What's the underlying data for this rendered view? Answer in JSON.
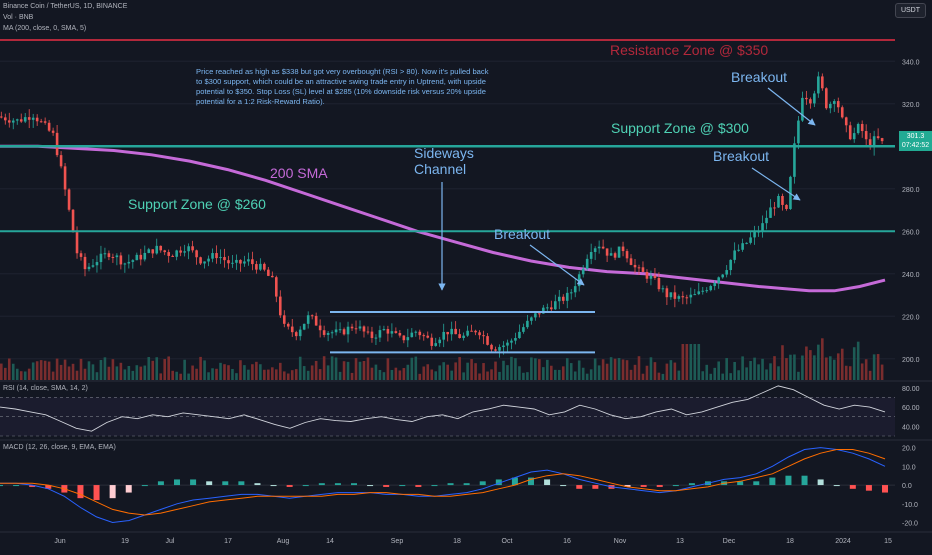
{
  "header": {
    "symbol_line": "Binance Coin / TetherUS, 1D, BINANCE",
    "vol_line": "Vol · BNB",
    "ma_line": "MA (200, close, 0, SMA, 5)",
    "currency_badge": "USDT"
  },
  "price_badge": {
    "price": "301.3",
    "countdown": "07:42:52"
  },
  "annotation": "Price reached as high as $338 but got very overbought (RSI > 80). Now it's pulled back to $300 support, which could be an attractive swing trade entry in Uptrend, with upside potential to $350. Stop Loss (SL) level at $285 (10% downside risk versus 20% upside potential for a 1:2 Risk-Reward Ratio).",
  "labels": {
    "resistance": "Resistance Zone @ $350",
    "support300": "Support Zone @ $300",
    "support260": "Support Zone @ $260",
    "sma200": "200 SMA",
    "sideways1": "Sideways",
    "sideways2": "Channel",
    "breakout": "Breakout"
  },
  "panes": {
    "rsi_title": "RSI (14, close, SMA, 14, 2)",
    "macd_title": "MACD (12, 26, close, 9, EMA, EMA)"
  },
  "colors": {
    "background": "#131722",
    "up": "#26a69a",
    "down": "#ef5350",
    "sma": "#c56ad8",
    "resistance": "#b2283b",
    "support": "#26a69a",
    "channel": "#7cb6f0",
    "text_blue": "#7cb6f0"
  },
  "chart_data": [
    {
      "type": "candlestick",
      "x_ticks": [
        "Jun",
        "19",
        "Jul",
        "17",
        "Aug",
        "14",
        "Sep",
        "18",
        "Oct",
        "16",
        "Nov",
        "13",
        "Dec",
        "18",
        "2024",
        "15"
      ],
      "y_ticks": [
        200,
        220,
        240,
        260,
        280,
        300,
        320,
        340
      ],
      "ylim": [
        190,
        350
      ],
      "levels": {
        "resistance": 350,
        "support_upper": 300,
        "support_lower": 260
      },
      "channel": {
        "top": 222,
        "bottom": 203
      },
      "sma200_path": [
        [
          0,
          300
        ],
        [
          30,
          300
        ],
        [
          60,
          299
        ],
        [
          90,
          298
        ],
        [
          120,
          296
        ],
        [
          150,
          293
        ],
        [
          180,
          289
        ],
        [
          210,
          284
        ],
        [
          240,
          278
        ],
        [
          270,
          272
        ],
        [
          300,
          266
        ],
        [
          330,
          260
        ],
        [
          360,
          255
        ],
        [
          390,
          250
        ],
        [
          420,
          246
        ],
        [
          450,
          243
        ],
        [
          480,
          241
        ],
        [
          510,
          240
        ],
        [
          540,
          238
        ],
        [
          570,
          236
        ],
        [
          600,
          234
        ],
        [
          620,
          233
        ],
        [
          640,
          232
        ],
        [
          660,
          232
        ],
        [
          680,
          234
        ],
        [
          700,
          237
        ]
      ],
      "price_path": [
        [
          0,
          314
        ],
        [
          20,
          312
        ],
        [
          35,
          315
        ],
        [
          45,
          310
        ],
        [
          55,
          305
        ],
        [
          62,
          290
        ],
        [
          70,
          270
        ],
        [
          78,
          250
        ],
        [
          86,
          242
        ],
        [
          96,
          246
        ],
        [
          110,
          250
        ],
        [
          125,
          245
        ],
        [
          140,
          248
        ],
        [
          155,
          252
        ],
        [
          170,
          249
        ],
        [
          185,
          253
        ],
        [
          200,
          246
        ],
        [
          215,
          249
        ],
        [
          230,
          244
        ],
        [
          245,
          246
        ],
        [
          260,
          242
        ],
        [
          270,
          236
        ],
        [
          280,
          215
        ],
        [
          292,
          212
        ],
        [
          305,
          220
        ],
        [
          320,
          213
        ],
        [
          335,
          212
        ],
        [
          350,
          216
        ],
        [
          365,
          210
        ],
        [
          380,
          214
        ],
        [
          395,
          209
        ],
        [
          410,
          213
        ],
        [
          425,
          208
        ],
        [
          440,
          213
        ],
        [
          455,
          210
        ],
        [
          470,
          214
        ],
        [
          485,
          205
        ],
        [
          500,
          207
        ],
        [
          515,
          215
        ],
        [
          530,
          222
        ],
        [
          545,
          226
        ],
        [
          560,
          230
        ],
        [
          570,
          240
        ],
        [
          580,
          252
        ],
        [
          590,
          254
        ],
        [
          600,
          248
        ],
        [
          612,
          252
        ],
        [
          625,
          242
        ],
        [
          640,
          238
        ],
        [
          655,
          230
        ],
        [
          670,
          228
        ],
        [
          685,
          230
        ],
        [
          700,
          236
        ],
        [
          712,
          242
        ],
        [
          722,
          250
        ],
        [
          730,
          253
        ],
        [
          740,
          258
        ],
        [
          748,
          262
        ],
        [
          756,
          270
        ],
        [
          764,
          275
        ],
        [
          772,
          268
        ],
        [
          780,
          300
        ],
        [
          788,
          325
        ],
        [
          796,
          322
        ],
        [
          804,
          332
        ],
        [
          812,
          318
        ],
        [
          820,
          324
        ],
        [
          828,
          310
        ],
        [
          836,
          304
        ],
        [
          844,
          310
        ],
        [
          852,
          300
        ],
        [
          860,
          304
        ],
        [
          866,
          301.3
        ]
      ],
      "current_price": 301.3
    },
    {
      "type": "line",
      "name": "RSI",
      "y_ticks": [
        40,
        60,
        80
      ],
      "ylim": [
        30,
        85
      ],
      "bands": [
        70,
        50,
        30
      ],
      "values": [
        60,
        58,
        55,
        52,
        45,
        38,
        35,
        44,
        50,
        48,
        52,
        50,
        54,
        52,
        50,
        48,
        52,
        47,
        42,
        38,
        44,
        48,
        46,
        45,
        48,
        50,
        47,
        45,
        50,
        52,
        48,
        55,
        58,
        62,
        60,
        58,
        52,
        55,
        62,
        58,
        52,
        48,
        50,
        55,
        58,
        52,
        55,
        60,
        65,
        68,
        75,
        82,
        78,
        70,
        62,
        58,
        62,
        60,
        55
      ]
    },
    {
      "type": "bar",
      "name": "MACD",
      "y_ticks": [
        -20,
        -10,
        0,
        10,
        20
      ],
      "ylim": [
        -24,
        23
      ],
      "macd": [
        1,
        1,
        0,
        -2,
        -6,
        -12,
        -17,
        -20,
        -19,
        -16,
        -13,
        -10,
        -8,
        -7,
        -6,
        -5,
        -5,
        -6,
        -7,
        -6,
        -5,
        -4,
        -4,
        -4,
        -5,
        -5,
        -6,
        -6,
        -5,
        -4,
        -2,
        1,
        4,
        7,
        8,
        6,
        3,
        1,
        -1,
        -2,
        -3,
        -4,
        -3,
        -1,
        1,
        3,
        4,
        6,
        10,
        15,
        19,
        20,
        19,
        17,
        14,
        10
      ],
      "signal": [
        1,
        1,
        1,
        0,
        -2,
        -5,
        -9,
        -13,
        -15,
        -16,
        -15,
        -13,
        -11,
        -9,
        -8,
        -7,
        -6,
        -6,
        -6,
        -6,
        -6,
        -5,
        -5,
        -4,
        -4,
        -5,
        -5,
        -6,
        -6,
        -5,
        -4,
        -2,
        0,
        3,
        5,
        6,
        5,
        3,
        1,
        -1,
        -2,
        -3,
        -3,
        -2,
        -1,
        1,
        2,
        4,
        6,
        10,
        14,
        17,
        19,
        19,
        17,
        14
      ]
    }
  ]
}
